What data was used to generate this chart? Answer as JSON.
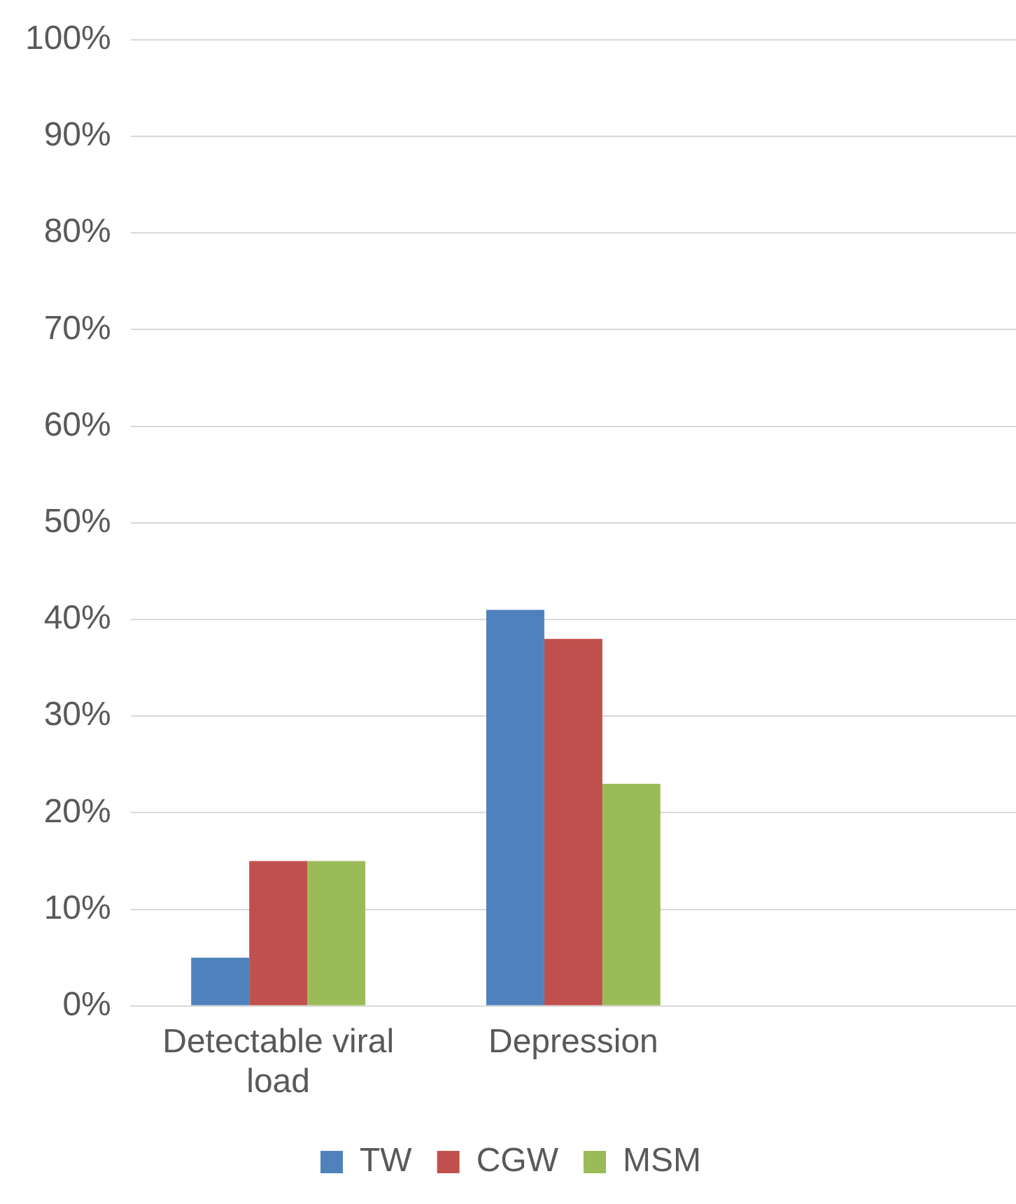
{
  "chart_data": {
    "type": "bar",
    "categories": [
      "Detectable viral load",
      "Depression",
      null
    ],
    "series": [
      {
        "name": "TW",
        "color": "#4f81bd",
        "values": [
          5,
          41,
          null
        ]
      },
      {
        "name": "CGW",
        "color": "#c0504d",
        "values": [
          15,
          38,
          null
        ]
      },
      {
        "name": "MSM",
        "color": "#9bbb59",
        "values": [
          15,
          23,
          null
        ]
      }
    ],
    "ylim": [
      0,
      100
    ],
    "yticks": [
      {
        "value": 0,
        "label": "0%"
      },
      {
        "value": 10,
        "label": "10%"
      },
      {
        "value": 20,
        "label": "20%"
      },
      {
        "value": 30,
        "label": "30%"
      },
      {
        "value": 40,
        "label": "40%"
      },
      {
        "value": 50,
        "label": "50%"
      },
      {
        "value": 60,
        "label": "60%"
      },
      {
        "value": 70,
        "label": "70%"
      },
      {
        "value": 80,
        "label": "80%"
      },
      {
        "value": 90,
        "label": "90%"
      },
      {
        "value": 100,
        "label": "100%"
      }
    ],
    "grid": "y",
    "legend": "bottom"
  }
}
